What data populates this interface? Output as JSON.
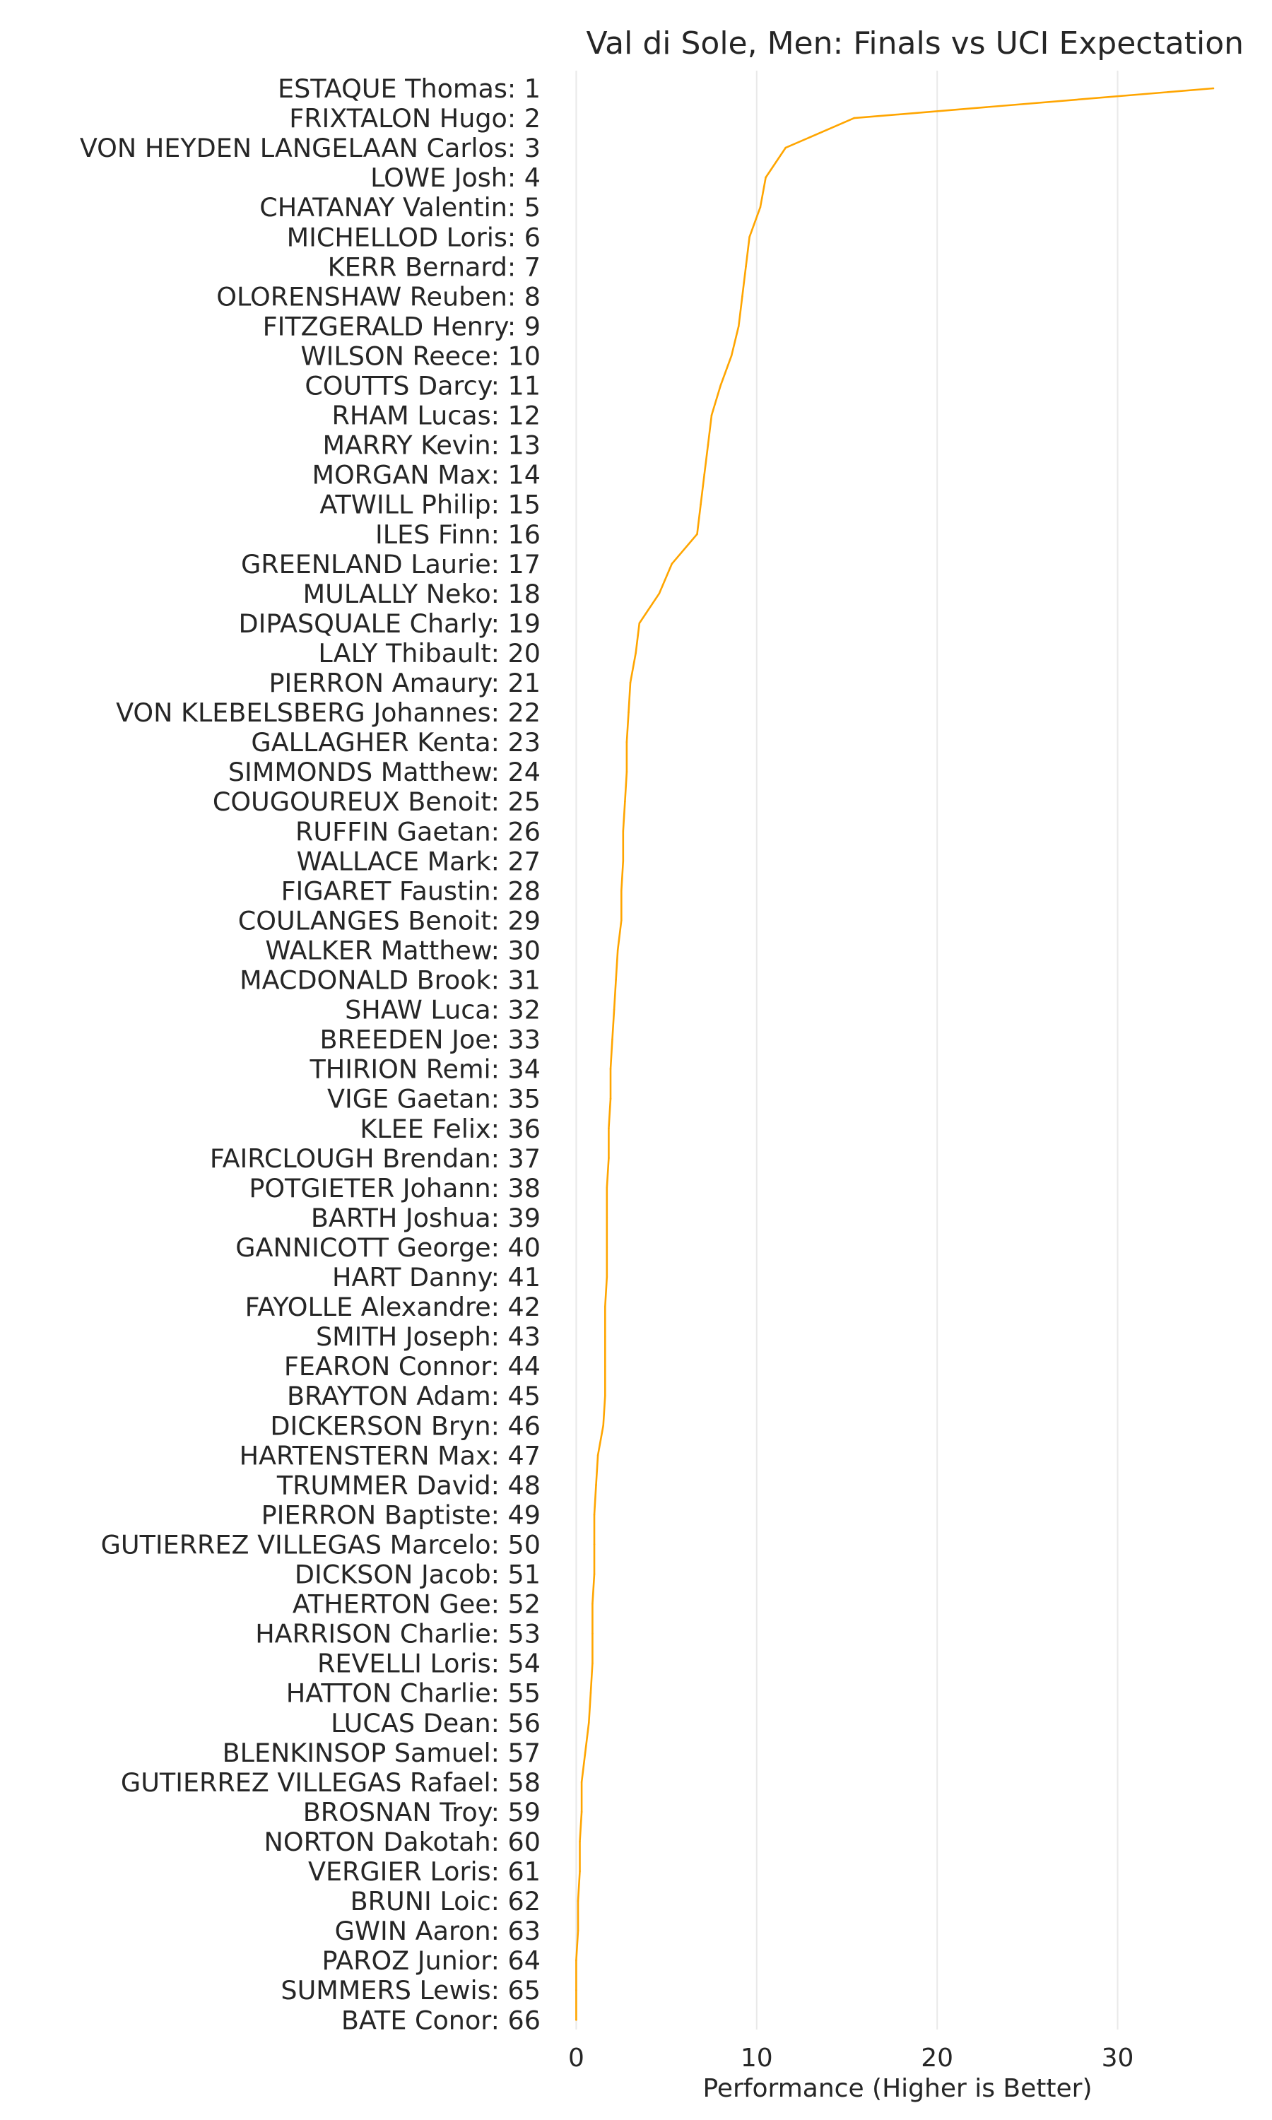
{
  "chart_data": {
    "type": "line",
    "title": "Val di Sole, Men: Finals vs UCI Expectation",
    "xlabel": "Performance (Higher is Better)",
    "ylabel": "",
    "xlim": [
      -0.8,
      36.4
    ],
    "xticks": [
      0,
      10,
      20,
      30
    ],
    "grid": "vertical",
    "line_color": "#ffa500",
    "categories": [
      "ESTAQUE Thomas: 1",
      "FRIXTALON Hugo: 2",
      "VON HEYDEN LANGELAAN Carlos: 3",
      "LOWE Josh: 4",
      "CHATANAY Valentin: 5",
      "MICHELLOD Loris: 6",
      "KERR Bernard: 7",
      "OLORENSHAW Reuben: 8",
      "FITZGERALD Henry: 9",
      "WILSON Reece: 10",
      "COUTTS Darcy: 11",
      "RHAM Lucas: 12",
      "MARRY Kevin: 13",
      "MORGAN Max: 14",
      "ATWILL Philip: 15",
      "ILES Finn: 16",
      "GREENLAND Laurie: 17",
      "MULALLY Neko: 18",
      "DIPASQUALE Charly: 19",
      "LALY Thibault: 20",
      "PIERRON Amaury: 21",
      "VON KLEBELSBERG Johannes: 22",
      "GALLAGHER Kenta: 23",
      "SIMMONDS Matthew: 24",
      "COUGOUREUX Benoit: 25",
      "RUFFIN Gaetan: 26",
      "WALLACE Mark: 27",
      "FIGARET Faustin: 28",
      "COULANGES Benoit: 29",
      "WALKER Matthew: 30",
      "MACDONALD Brook: 31",
      "SHAW Luca: 32",
      "BREEDEN Joe: 33",
      "THIRION Remi: 34",
      "VIGE Gaetan: 35",
      "KLEE Felix: 36",
      "FAIRCLOUGH Brendan: 37",
      "POTGIETER Johann: 38",
      "BARTH Joshua: 39",
      "GANNICOTT George: 40",
      "HART Danny: 41",
      "FAYOLLE Alexandre: 42",
      "SMITH Joseph: 43",
      "FEARON Connor: 44",
      "BRAYTON Adam: 45",
      "DICKERSON Bryn: 46",
      "HARTENSTERN Max: 47",
      "TRUMMER David: 48",
      "PIERRON Baptiste: 49",
      "GUTIERREZ VILLEGAS Marcelo: 50",
      "DICKSON Jacob: 51",
      "ATHERTON Gee: 52",
      "HARRISON Charlie: 53",
      "REVELLI Loris: 54",
      "HATTON Charlie: 55",
      "LUCAS Dean: 56",
      "BLENKINSOP Samuel: 57",
      "GUTIERREZ VILLEGAS Rafael: 58",
      "BROSNAN Troy: 59",
      "NORTON Dakotah: 60",
      "VERGIER Loris: 61",
      "BRUNI Loic: 62",
      "GWIN Aaron: 63",
      "PAROZ Junior: 64",
      "SUMMERS Lewis: 65",
      "BATE Conor: 66"
    ],
    "values": [
      35.3,
      15.4,
      11.6,
      10.5,
      10.2,
      9.6,
      9.4,
      9.2,
      9.0,
      8.6,
      8.0,
      7.5,
      7.3,
      7.1,
      6.9,
      6.7,
      5.3,
      4.6,
      3.5,
      3.3,
      3.0,
      2.9,
      2.8,
      2.8,
      2.7,
      2.6,
      2.6,
      2.5,
      2.5,
      2.3,
      2.2,
      2.1,
      2.0,
      1.9,
      1.9,
      1.8,
      1.8,
      1.7,
      1.7,
      1.7,
      1.7,
      1.6,
      1.6,
      1.6,
      1.6,
      1.5,
      1.2,
      1.1,
      1.0,
      1.0,
      1.0,
      0.9,
      0.9,
      0.9,
      0.8,
      0.7,
      0.5,
      0.3,
      0.3,
      0.2,
      0.2,
      0.1,
      0.1,
      0.0,
      0.0,
      0.0
    ]
  }
}
